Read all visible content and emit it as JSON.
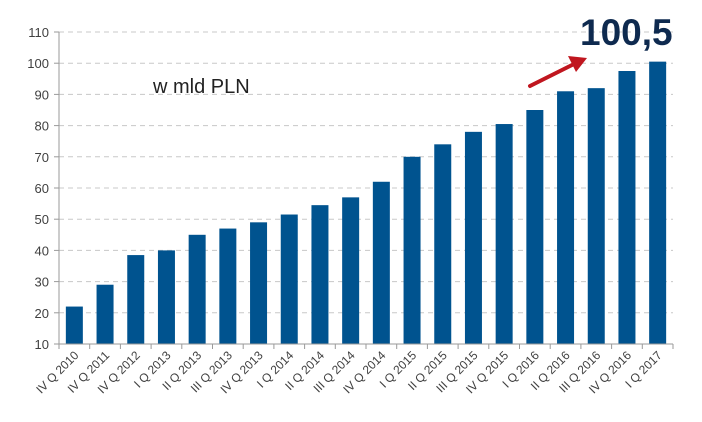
{
  "chart_data": {
    "type": "bar",
    "categories": [
      "IV Q 2010",
      "IV Q 2011",
      "IV Q 2012",
      "I Q 2013",
      "II Q 2013",
      "III Q 2013",
      "IV Q 2013",
      "I Q 2014",
      "II Q 2014",
      "III Q 2014",
      "IV Q 2014",
      "I Q 2015",
      "II Q 2015",
      "III Q 2015",
      "IV Q 2015",
      "I Q 2016",
      "II Q 2016",
      "III Q 2016",
      "IV Q 2016",
      "I Q 2017"
    ],
    "values": [
      22,
      29,
      38.5,
      40,
      45,
      47,
      49,
      51.5,
      54.5,
      57,
      62,
      70,
      74,
      78,
      80.5,
      85,
      91,
      92,
      97.5,
      100.5
    ],
    "ylim": [
      10,
      110
    ],
    "yticks": [
      10,
      20,
      30,
      40,
      50,
      60,
      70,
      80,
      90,
      100,
      110
    ],
    "grid": true,
    "annotation_unit": "w mld PLN",
    "annotation_value": "100,5",
    "colors": {
      "bar": "#00538f",
      "annotation_value": "#0e2a4f",
      "arrow": "#c0161f",
      "grid": "#c8c8c8",
      "axis": "#9a9a9a",
      "tick_text": "#404040"
    }
  }
}
